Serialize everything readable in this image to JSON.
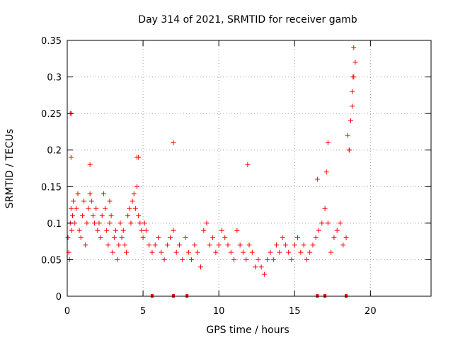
{
  "chart_data": {
    "type": "scatter",
    "title": "Day 314 of 2021, SRMTID for receiver gamb",
    "xlabel": "GPS time / hours",
    "ylabel": "SRMTID / TECUs",
    "xlim": [
      0,
      24
    ],
    "ylim": [
      0,
      0.35
    ],
    "x_ticks": [
      0,
      5,
      10,
      15,
      20
    ],
    "x_tick_labels": [
      "0",
      "5",
      "10",
      "15",
      "20"
    ],
    "y_ticks": [
      0,
      0.05,
      0.1,
      0.15,
      0.2,
      0.25,
      0.3,
      0.35
    ],
    "y_tick_labels": [
      "0",
      "0.05",
      "0.1",
      "0.15",
      "0.2",
      "0.25",
      "0.3",
      "0.35"
    ],
    "grid": true,
    "marker": "+",
    "marker_color": "#ff0000",
    "series": [
      {
        "name": "SRMTID",
        "x": [
          0.05,
          0.1,
          0.15,
          0.2,
          0.25,
          0.3,
          0.35,
          0.4,
          0.5,
          0.6,
          0.7,
          0.8,
          0.9,
          1.0,
          1.1,
          1.2,
          1.3,
          1.4,
          1.5,
          1.6,
          1.7,
          1.8,
          1.9,
          2.0,
          2.1,
          2.2,
          2.3,
          2.4,
          2.5,
          2.6,
          2.7,
          2.8,
          2.9,
          3.0,
          3.1,
          3.2,
          3.3,
          3.4,
          3.5,
          3.6,
          3.7,
          3.8,
          3.9,
          4.0,
          4.1,
          4.2,
          4.3,
          4.4,
          4.5,
          4.6,
          4.7,
          4.8,
          4.9,
          5.0,
          5.1,
          5.2,
          5.4,
          5.6,
          5.8,
          6.0,
          6.2,
          6.4,
          6.6,
          6.8,
          7.0,
          7.2,
          7.4,
          7.6,
          7.8,
          8.0,
          8.2,
          8.4,
          8.6,
          8.8,
          9.0,
          9.2,
          9.4,
          9.6,
          9.8,
          10.0,
          10.2,
          10.4,
          10.6,
          10.8,
          11.0,
          11.2,
          11.4,
          11.6,
          11.8,
          12.0,
          12.2,
          12.4,
          12.6,
          12.8,
          13.0,
          13.2,
          13.4,
          13.6,
          13.8,
          14.0,
          14.2,
          14.4,
          14.6,
          14.8,
          15.0,
          15.2,
          15.4,
          15.6,
          15.8,
          16.0,
          16.2,
          16.4,
          16.6,
          16.8,
          17.0,
          17.2,
          17.4,
          17.6,
          17.8,
          18.0,
          18.2,
          18.4,
          18.5,
          18.6,
          18.7,
          18.8,
          18.9,
          19.0,
          0.2,
          0.25,
          0.3,
          1.5,
          2.8,
          4.6,
          4.7,
          7.0,
          11.9,
          16.5,
          17.1,
          17.2,
          18.6,
          18.8,
          18.85,
          18.9
        ],
        "y": [
          0.08,
          0.06,
          0.05,
          0.1,
          0.12,
          0.09,
          0.11,
          0.13,
          0.1,
          0.12,
          0.14,
          0.09,
          0.08,
          0.11,
          0.13,
          0.07,
          0.1,
          0.12,
          0.14,
          0.13,
          0.11,
          0.1,
          0.12,
          0.09,
          0.1,
          0.08,
          0.11,
          0.14,
          0.12,
          0.09,
          0.07,
          0.1,
          0.11,
          0.06,
          0.08,
          0.09,
          0.05,
          0.07,
          0.1,
          0.08,
          0.09,
          0.07,
          0.06,
          0.11,
          0.12,
          0.1,
          0.13,
          0.14,
          0.12,
          0.15,
          0.11,
          0.1,
          0.09,
          0.08,
          0.1,
          0.09,
          0.07,
          0.06,
          0.07,
          0.08,
          0.06,
          0.05,
          0.07,
          0.08,
          0.09,
          0.06,
          0.07,
          0.05,
          0.08,
          0.06,
          0.05,
          0.07,
          0.06,
          0.04,
          0.09,
          0.1,
          0.07,
          0.08,
          0.06,
          0.07,
          0.09,
          0.08,
          0.07,
          0.06,
          0.05,
          0.09,
          0.07,
          0.06,
          0.05,
          0.07,
          0.06,
          0.04,
          0.05,
          0.04,
          0.03,
          0.05,
          0.06,
          0.05,
          0.07,
          0.06,
          0.08,
          0.07,
          0.06,
          0.05,
          0.07,
          0.08,
          0.06,
          0.07,
          0.05,
          0.06,
          0.07,
          0.08,
          0.09,
          0.1,
          0.12,
          0.1,
          0.06,
          0.08,
          0.09,
          0.1,
          0.07,
          0.08,
          0.22,
          0.2,
          0.24,
          0.28,
          0.3,
          0.32,
          0.25,
          0.19,
          0.25,
          0.18,
          0.13,
          0.19,
          0.19,
          0.21,
          0.18,
          0.16,
          0.17,
          0.21,
          0.2,
          0.26,
          0.3,
          0.34
        ],
        "y_zero_markers_x": [
          5.6,
          7.0,
          7.9,
          16.5,
          17.0,
          18.4
        ]
      }
    ]
  }
}
